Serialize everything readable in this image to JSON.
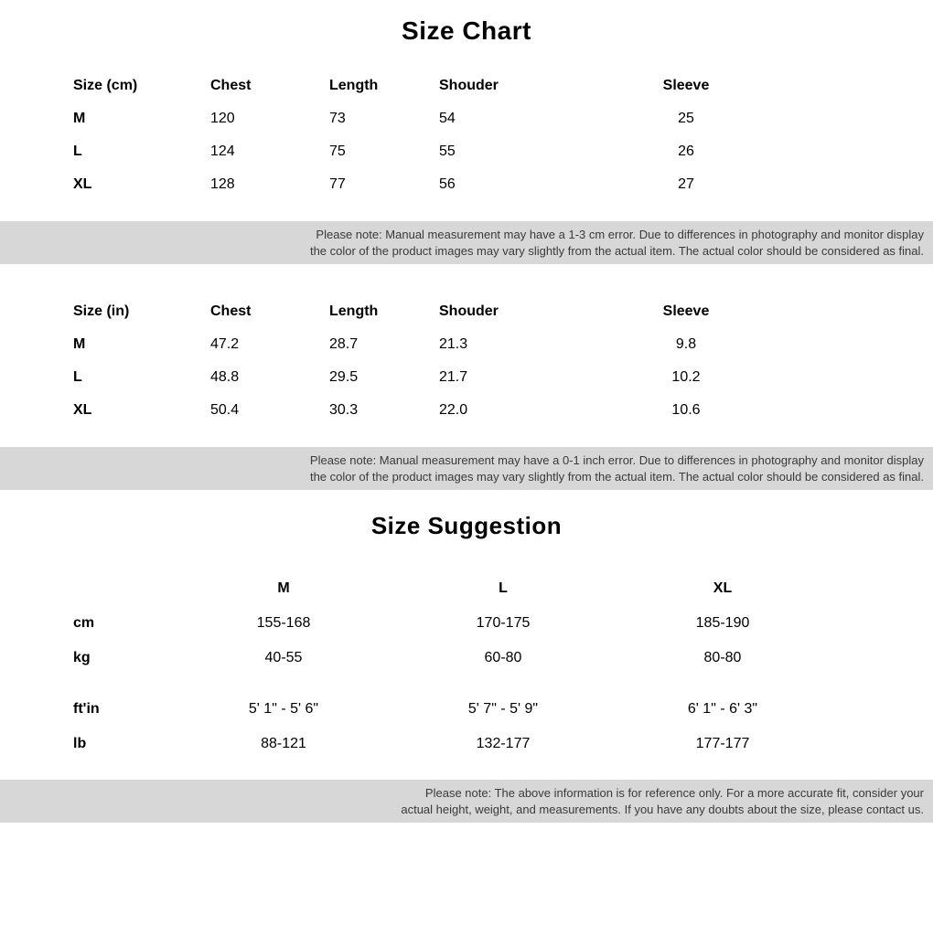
{
  "titles": {
    "size_chart": "Size Chart",
    "size_suggestion": "Size Suggestion"
  },
  "size_chart_cm": {
    "headers": {
      "size": "Size (cm)",
      "chest": "Chest",
      "length": "Length",
      "shoulder": "Shouder",
      "sleeve": "Sleeve"
    },
    "rows": [
      {
        "size": "M",
        "chest": "120",
        "length": "73",
        "shoulder": "54",
        "sleeve": "25"
      },
      {
        "size": "L",
        "chest": "124",
        "length": "75",
        "shoulder": "55",
        "sleeve": "26"
      },
      {
        "size": "XL",
        "chest": "128",
        "length": "77",
        "shoulder": "56",
        "sleeve": "27"
      }
    ]
  },
  "note_cm": {
    "line1": "Please note: Manual measurement may have a 1-3 cm error. Due to differences in photography and monitor display",
    "line2": "the color of the product images may vary slightly from the actual item. The actual color should be considered as final."
  },
  "size_chart_in": {
    "headers": {
      "size": "Size (in)",
      "chest": "Chest",
      "length": "Length",
      "shoulder": "Shouder",
      "sleeve": "Sleeve"
    },
    "rows": [
      {
        "size": "M",
        "chest": "47.2",
        "length": "28.7",
        "shoulder": "21.3",
        "sleeve": "9.8"
      },
      {
        "size": "L",
        "chest": "48.8",
        "length": "29.5",
        "shoulder": "21.7",
        "sleeve": "10.2"
      },
      {
        "size": "XL",
        "chest": "50.4",
        "length": "30.3",
        "shoulder": "22.0",
        "sleeve": "10.6"
      }
    ]
  },
  "note_in": {
    "line1": "Please note: Manual measurement may have a 0-1 inch error. Due to differences in photography and monitor display",
    "line2": "the color of the product images may vary slightly from the actual item. The actual color should be considered as final."
  },
  "suggestion": {
    "headers": {
      "m": "M",
      "l": "L",
      "xl": "XL"
    },
    "rows_metric": [
      {
        "label": "cm",
        "m": "155-168",
        "l": "170-175",
        "xl": "185-190"
      },
      {
        "label": "kg",
        "m": "40-55",
        "l": "60-80",
        "xl": "80-80"
      }
    ],
    "rows_imperial": [
      {
        "label": "ft'in",
        "m": "5' 1\" - 5' 6\"",
        "l": "5' 7\" - 5' 9\"",
        "xl": "6' 1\" - 6' 3\""
      },
      {
        "label": "lb",
        "m": "88-121",
        "l": "132-177",
        "xl": "177-177"
      }
    ]
  },
  "note_sugg": {
    "line1": "Please note: The above information is for reference only. For a more accurate fit, consider your",
    "line2": "actual height, weight, and measurements. If you have any doubts about the size, please contact us."
  },
  "colors": {
    "background": "#ffffff",
    "text": "#000000",
    "note_bg": "#d7d7d7",
    "note_text": "#3a3a3a"
  }
}
